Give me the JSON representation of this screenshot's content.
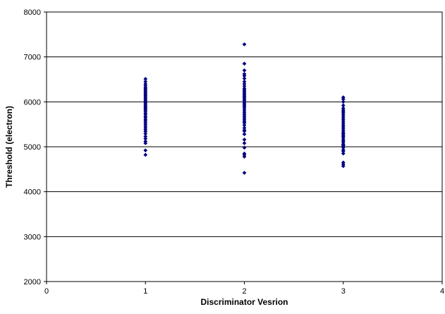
{
  "chart_data": {
    "type": "scatter",
    "xlabel": "Discriminator Vesrion",
    "ylabel": "Threshold (electron)",
    "xlim": [
      0,
      4
    ],
    "ylim": [
      2000,
      8000
    ],
    "x_ticks": [
      "0",
      "1",
      "2",
      "3",
      "4"
    ],
    "y_ticks": [
      "2000",
      "3000",
      "4000",
      "5000",
      "6000",
      "7000",
      "8000"
    ],
    "grid": "horizontal",
    "legend": "none",
    "marker": "diamond",
    "marker_color": "#000080",
    "series": [
      {
        "x": [
          1,
          1,
          1,
          1,
          1,
          1,
          1,
          1,
          1,
          1,
          1,
          1,
          1,
          1,
          1,
          1,
          1,
          1,
          1,
          1,
          1,
          1,
          1,
          1,
          1,
          1,
          1,
          1,
          1,
          1,
          1,
          1,
          1,
          1,
          1,
          1,
          1,
          1,
          1,
          1,
          1,
          1
        ],
        "y": [
          4820,
          4920,
          5080,
          5120,
          5180,
          5230,
          5290,
          5340,
          5380,
          5420,
          5460,
          5500,
          5540,
          5580,
          5610,
          5650,
          5680,
          5720,
          5750,
          5790,
          5820,
          5850,
          5880,
          5900,
          5930,
          5960,
          5990,
          6020,
          6050,
          6080,
          6110,
          6140,
          6170,
          6200,
          6230,
          6260,
          6290,
          6320,
          6360,
          6400,
          6450,
          6510
        ]
      },
      {
        "x": [
          2,
          2,
          2,
          2,
          2,
          2,
          2,
          2,
          2,
          2,
          2,
          2,
          2,
          2,
          2,
          2,
          2,
          2,
          2,
          2,
          2,
          2,
          2,
          2,
          2,
          2,
          2,
          2,
          2,
          2,
          2,
          2,
          2,
          2,
          2,
          2,
          2,
          2,
          2,
          2,
          2,
          2,
          2,
          2,
          2,
          2
        ],
        "y": [
          4420,
          4780,
          4820,
          4850,
          4980,
          5080,
          5160,
          5280,
          5350,
          5370,
          5420,
          5480,
          5530,
          5560,
          5600,
          5640,
          5680,
          5720,
          5760,
          5800,
          5840,
          5880,
          5910,
          5940,
          5970,
          6000,
          6030,
          6060,
          6090,
          6120,
          6150,
          6180,
          6210,
          6240,
          6270,
          6300,
          6350,
          6400,
          6450,
          6520,
          6580,
          6620,
          6700,
          6850,
          7280,
          6000
        ]
      },
      {
        "x": [
          3,
          3,
          3,
          3,
          3,
          3,
          3,
          3,
          3,
          3,
          3,
          3,
          3,
          3,
          3,
          3,
          3,
          3,
          3,
          3,
          3,
          3,
          3,
          3,
          3,
          3,
          3,
          3,
          3,
          3,
          3,
          3,
          3,
          3,
          3,
          3
        ],
        "y": [
          4570,
          4610,
          4650,
          4850,
          4900,
          4930,
          4980,
          5020,
          5060,
          5100,
          5130,
          5160,
          5200,
          5230,
          5260,
          5290,
          5320,
          5360,
          5400,
          5440,
          5480,
          5520,
          5560,
          5600,
          5640,
          5680,
          5720,
          5760,
          5790,
          5820,
          5860,
          5920,
          6000,
          6060,
          6100,
          5040
        ]
      }
    ]
  }
}
